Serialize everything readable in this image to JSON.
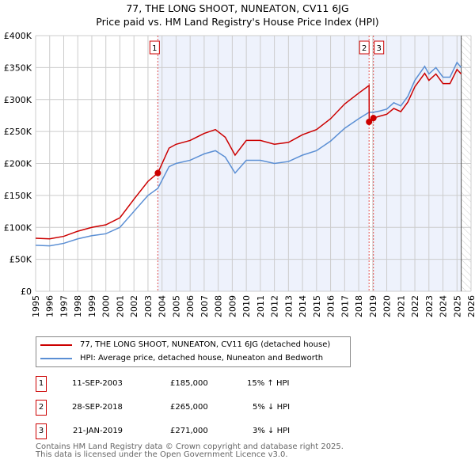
{
  "chart_data": {
    "type": "line",
    "title": "77, THE LONG SHOOT, NUNEATON, CV11 6JG",
    "subtitle": "Price paid vs. HM Land Registry's House Price Index (HPI)",
    "xlim": [
      1995,
      2026
    ],
    "ylim": [
      0,
      400000
    ],
    "x_ticks": [
      "1995",
      "1996",
      "1997",
      "1998",
      "1999",
      "2000",
      "2001",
      "2002",
      "2003",
      "2004",
      "2005",
      "2006",
      "2007",
      "2008",
      "2009",
      "2010",
      "2011",
      "2012",
      "2013",
      "2014",
      "2015",
      "2016",
      "2017",
      "2018",
      "2019",
      "2020",
      "2021",
      "2022",
      "2023",
      "2024",
      "2025",
      "2026"
    ],
    "y_ticks": [
      {
        "v": 0,
        "label": "£0"
      },
      {
        "v": 50000,
        "label": "£50K"
      },
      {
        "v": 100000,
        "label": "£100K"
      },
      {
        "v": 150000,
        "label": "£150K"
      },
      {
        "v": 200000,
        "label": "£200K"
      },
      {
        "v": 250000,
        "label": "£250K"
      },
      {
        "v": 300000,
        "label": "£300K"
      },
      {
        "v": 350000,
        "label": "£350K"
      },
      {
        "v": 400000,
        "label": "£400K"
      }
    ],
    "grid": true,
    "series": [
      {
        "name": "77, THE LONG SHOOT, NUNEATON, CV11 6JG (detached house)",
        "color": "#cc0000",
        "x": [
          1995,
          1996,
          1997,
          1998,
          1999,
          2000,
          2001,
          2002,
          2003,
          2003.7,
          2004.5,
          2005,
          2006,
          2007,
          2007.8,
          2008.5,
          2009.2,
          2010,
          2011,
          2012,
          2013,
          2014,
          2015,
          2016,
          2017,
          2018,
          2018.74,
          2018.75,
          2019.05,
          2019.5,
          2020,
          2020.5,
          2021,
          2021.5,
          2022,
          2022.7,
          2023,
          2023.5,
          2024,
          2024.5,
          2025,
          2025.3
        ],
        "y": [
          83000,
          82000,
          86000,
          94000,
          100000,
          104000,
          115000,
          144000,
          172000,
          185000,
          224000,
          230000,
          236000,
          247000,
          253000,
          241000,
          213000,
          236000,
          236000,
          230000,
          233000,
          245000,
          253000,
          270000,
          293000,
          310000,
          322000,
          265000,
          271000,
          274000,
          277000,
          286000,
          281000,
          296000,
          320000,
          341000,
          330000,
          340000,
          325000,
          325000,
          347000,
          340000
        ]
      },
      {
        "name": "HPI: Average price, detached house, Nuneaton and Bedworth",
        "color": "#5b8fd4",
        "x": [
          1995,
          1996,
          1997,
          1998,
          1999,
          2000,
          2001,
          2002,
          2003,
          2003.7,
          2004.5,
          2005,
          2006,
          2007,
          2007.8,
          2008.5,
          2009.2,
          2010,
          2011,
          2012,
          2013,
          2014,
          2015,
          2016,
          2017,
          2018,
          2018.74,
          2019.05,
          2019.5,
          2020,
          2020.5,
          2021,
          2021.5,
          2022,
          2022.7,
          2023,
          2023.5,
          2024,
          2024.5,
          2025,
          2025.3
        ],
        "y": [
          72000,
          71000,
          75000,
          82000,
          87000,
          90000,
          100000,
          125000,
          150000,
          161000,
          195000,
          200000,
          205000,
          215000,
          220000,
          210000,
          185000,
          205000,
          205000,
          200000,
          203000,
          213000,
          220000,
          235000,
          255000,
          270000,
          280000,
          280000,
          282000,
          285000,
          295000,
          290000,
          305000,
          330000,
          352000,
          340000,
          350000,
          335000,
          335000,
          358000,
          350000
        ]
      }
    ],
    "sales": [
      {
        "label": "1",
        "date": "11-SEP-2003",
        "x": 2003.7,
        "price": "£185,000",
        "value": 185000,
        "hpi": "15% ↑ HPI"
      },
      {
        "label": "2",
        "date": "28-SEP-2018",
        "x": 2018.74,
        "price": "£265,000",
        "value": 265000,
        "hpi": "5% ↓ HPI"
      },
      {
        "label": "3",
        "date": "21-JAN-2019",
        "x": 2019.05,
        "price": "£271,000",
        "value": 271000,
        "hpi": "3% ↓ HPI"
      }
    ],
    "forecast_from": 2025.3
  },
  "footer": {
    "line1": "Contains HM Land Registry data © Crown copyright and database right 2025.",
    "line2": "This data is licensed under the Open Government Licence v3.0."
  }
}
